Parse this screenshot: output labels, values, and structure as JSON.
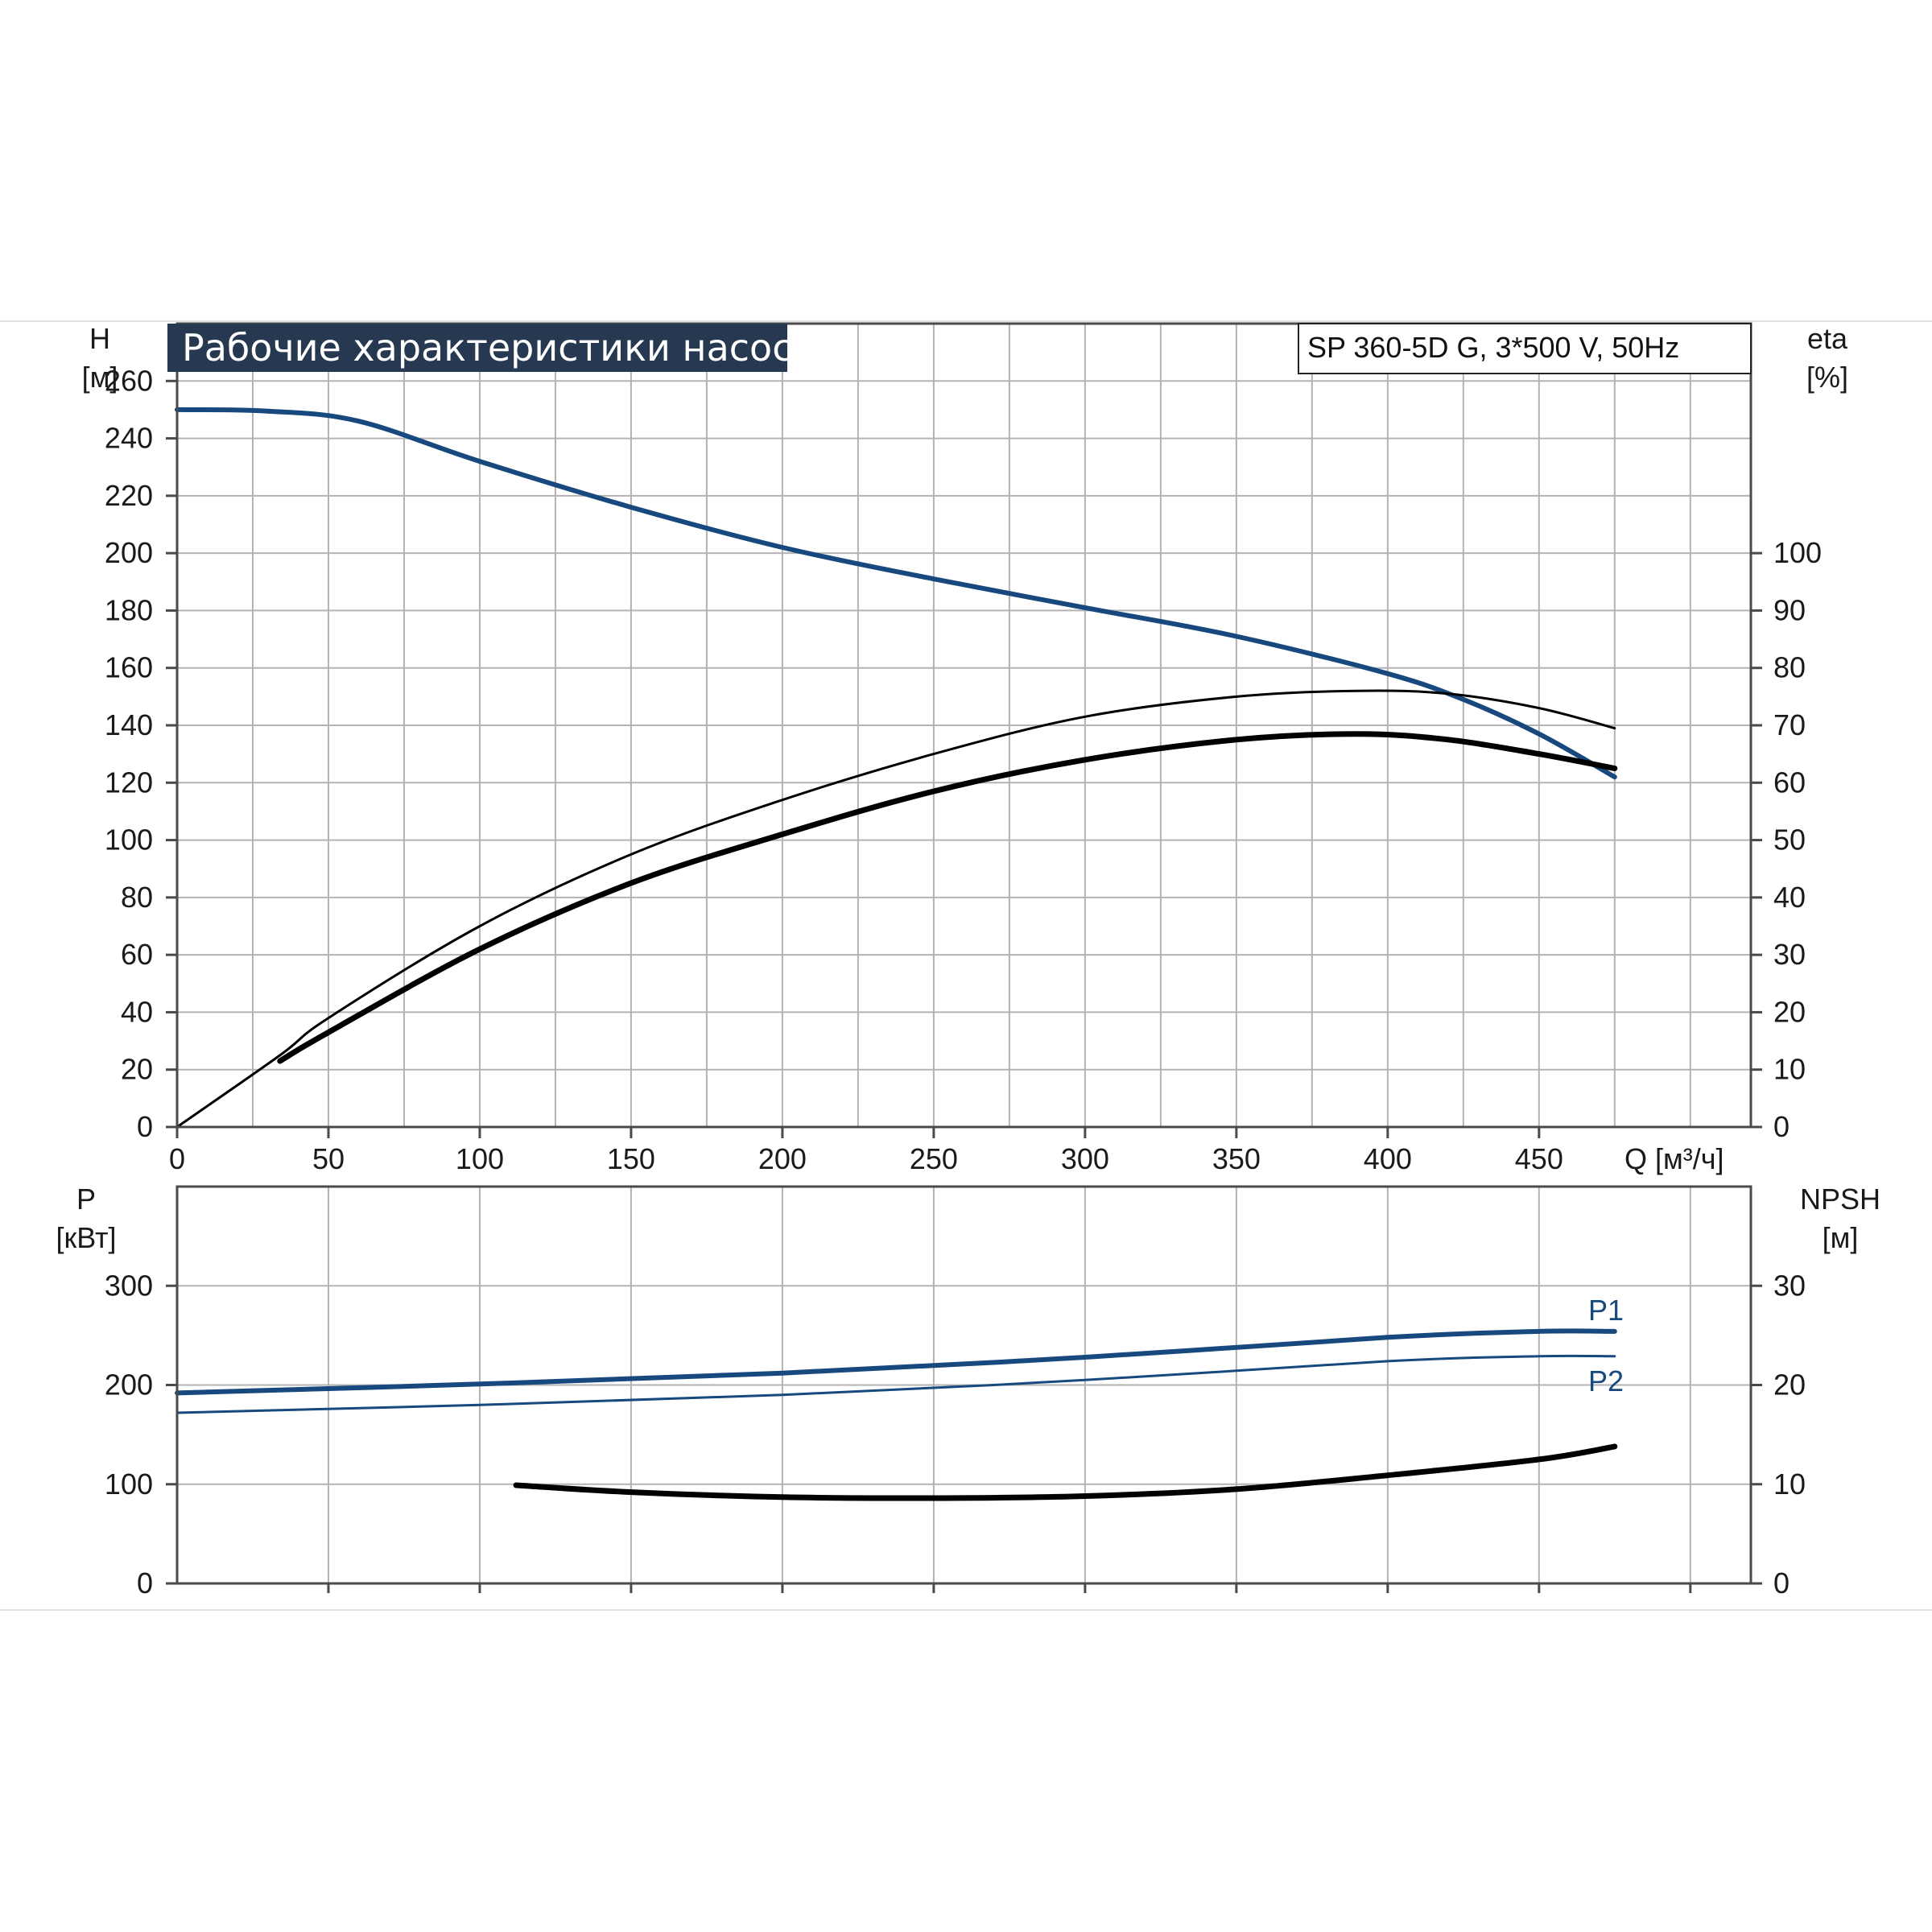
{
  "colors": {
    "grid": "#b3b3b3",
    "frame": "#4a4a4a",
    "banner_bg": "#263950",
    "blue": "#17487e",
    "black": "#000000"
  },
  "chart_data": [
    {
      "type": "line",
      "title": "Рабочие характеристики насоса",
      "model": "SP 360-5D G, 3*500 V, 50Hz",
      "grid": true,
      "x_label": "Q [м³/ч]",
      "x_ticks": [
        "0",
        "50",
        "100",
        "150",
        "200",
        "250",
        "300",
        "350",
        "400",
        "450"
      ],
      "xlim": [
        0,
        520
      ],
      "y_left": {
        "label_top": "H",
        "label_unit": "[м]",
        "lim": [
          0,
          280
        ],
        "ticks": [
          "0",
          "20",
          "40",
          "60",
          "80",
          "100",
          "120",
          "140",
          "160",
          "180",
          "200",
          "220",
          "240",
          "260"
        ]
      },
      "y_right": {
        "label_top": "eta",
        "label_unit": "[%]",
        "lim": [
          0,
          140
        ],
        "ticks": [
          "0",
          "10",
          "20",
          "30",
          "40",
          "50",
          "60",
          "70",
          "80",
          "90",
          "100"
        ]
      },
      "series": [
        {
          "id": "H",
          "axis": "left",
          "color": "blue",
          "width": 6,
          "points": [
            [
              0,
              250
            ],
            [
              30,
              249.5
            ],
            [
              60,
              246
            ],
            [
              100,
              232
            ],
            [
              150,
              216
            ],
            [
              200,
              202
            ],
            [
              250,
              191
            ],
            [
              300,
              181
            ],
            [
              350,
              171
            ],
            [
              400,
              158
            ],
            [
              425,
              149
            ],
            [
              450,
              137
            ],
            [
              475,
              122
            ]
          ]
        },
        {
          "id": "eta-thin",
          "axis": "right",
          "color": "black",
          "width": 3,
          "points": [
            [
              0,
              0
            ],
            [
              34,
              12.5
            ],
            [
              50,
              19
            ],
            [
              100,
              35
            ],
            [
              150,
              47.5
            ],
            [
              200,
              57
            ],
            [
              250,
              65
            ],
            [
              300,
              71.5
            ],
            [
              350,
              75
            ],
            [
              390,
              76
            ],
            [
              420,
              75.5
            ],
            [
              450,
              73
            ],
            [
              475,
              69.5
            ]
          ]
        },
        {
          "id": "eta-thick",
          "axis": "right",
          "color": "black",
          "width": 7,
          "points": [
            [
              34,
              11.5
            ],
            [
              50,
              16.5
            ],
            [
              100,
              31
            ],
            [
              150,
              42.5
            ],
            [
              200,
              51
            ],
            [
              250,
              58.5
            ],
            [
              300,
              64
            ],
            [
              350,
              67.5
            ],
            [
              390,
              68.5
            ],
            [
              420,
              67.5
            ],
            [
              450,
              65
            ],
            [
              475,
              62.5
            ]
          ]
        }
      ]
    },
    {
      "type": "line",
      "grid": true,
      "xlim": [
        0,
        520
      ],
      "y_left": {
        "label_top": "P",
        "label_unit": "[кВт]",
        "lim": [
          0,
          400
        ],
        "ticks": [
          "0",
          "100",
          "200",
          "300"
        ]
      },
      "y_right": {
        "label_top": "NPSH",
        "label_unit": "[м]",
        "lim": [
          0,
          40
        ],
        "ticks": [
          "0",
          "10",
          "20",
          "30"
        ]
      },
      "series": [
        {
          "id": "P1",
          "name": "P1",
          "axis": "left",
          "color": "blue",
          "width": 6,
          "points": [
            [
              0,
              192
            ],
            [
              100,
              201
            ],
            [
              200,
              212
            ],
            [
              300,
              228
            ],
            [
              400,
              248
            ],
            [
              450,
              254
            ],
            [
              475,
              254
            ]
          ]
        },
        {
          "id": "P2",
          "name": "P2",
          "axis": "left",
          "color": "blue",
          "width": 3,
          "points": [
            [
              0,
              172
            ],
            [
              100,
              180
            ],
            [
              200,
              190
            ],
            [
              300,
              205
            ],
            [
              400,
              224
            ],
            [
              450,
              229
            ],
            [
              475,
              229
            ]
          ]
        },
        {
          "id": "NPSH",
          "axis": "right",
          "color": "black",
          "width": 7,
          "points": [
            [
              112,
              9.9
            ],
            [
              150,
              9.2
            ],
            [
              200,
              8.7
            ],
            [
              250,
              8.6
            ],
            [
              300,
              8.8
            ],
            [
              350,
              9.5
            ],
            [
              400,
              10.9
            ],
            [
              450,
              12.5
            ],
            [
              475,
              13.8
            ]
          ]
        }
      ]
    }
  ]
}
